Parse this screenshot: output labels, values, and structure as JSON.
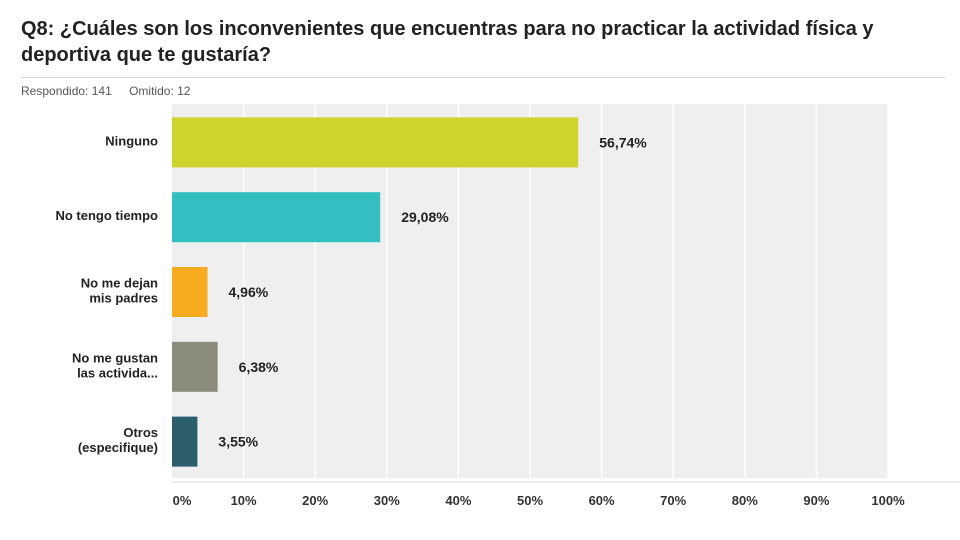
{
  "header": {
    "title": "Q8: ¿Cuáles son los inconvenientes que encuentras para no practicar la actividad física y deportiva que te gustaría?",
    "answered": "Respondido: 141",
    "skipped": "Omitido: 12"
  },
  "chart_data": {
    "type": "bar",
    "orientation": "horizontal",
    "categories": [
      [
        "Ninguno"
      ],
      [
        "No tengo tiempo"
      ],
      [
        "No me dejan",
        "mis padres"
      ],
      [
        "No me gustan",
        "las activida..."
      ],
      [
        "Otros",
        "(especifique)"
      ]
    ],
    "values": [
      56.74,
      29.08,
      4.96,
      6.38,
      3.55
    ],
    "value_labels": [
      "56,74%",
      "29,08%",
      "4,96%",
      "6,38%",
      "3,55%"
    ],
    "colors": [
      "#cdd42c",
      "#33bfc2",
      "#f6ac1e",
      "#8c8c7c",
      "#2b5d6b"
    ],
    "xlim": [
      0,
      100
    ],
    "xticks": [
      0,
      10,
      20,
      30,
      40,
      50,
      60,
      70,
      80,
      90,
      100
    ],
    "xtick_labels": [
      "0%",
      "10%",
      "20%",
      "30%",
      "40%",
      "50%",
      "60%",
      "70%",
      "80%",
      "90%",
      "100%"
    ],
    "grid": true,
    "plot_background": "#efefef"
  }
}
